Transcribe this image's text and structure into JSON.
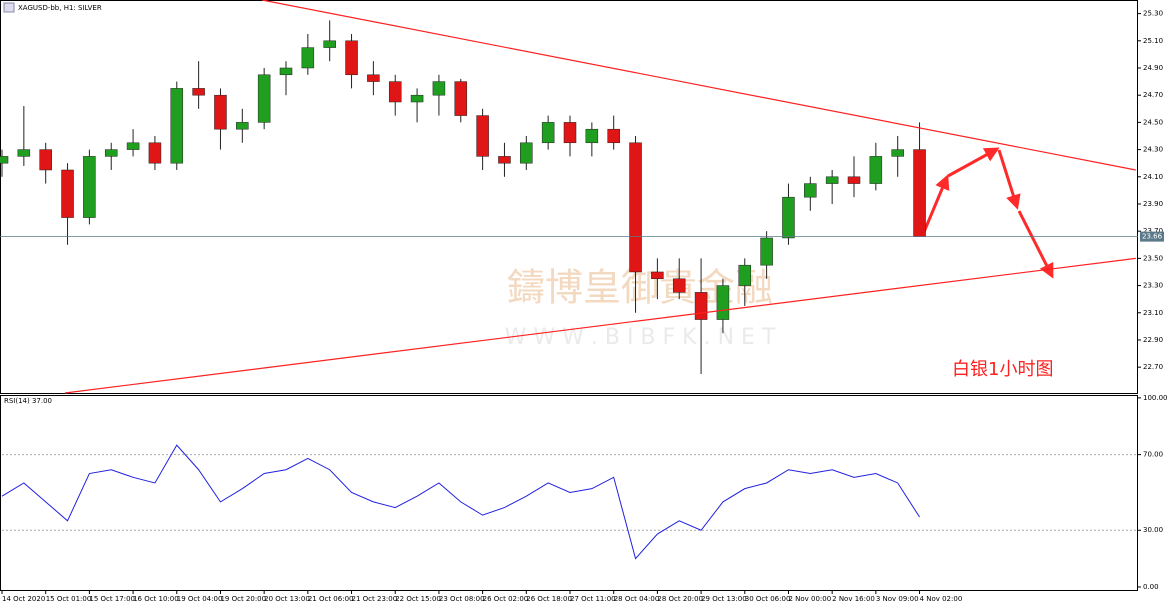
{
  "chart_data": [
    {
      "type": "candlestick",
      "title": "XAGUSD-bb, H1:  SILVER",
      "open": [
        24.2,
        24.25,
        24.3,
        24.15,
        23.8,
        24.25,
        24.3,
        24.35,
        24.2,
        24.75,
        24.7,
        24.45,
        24.5,
        24.85,
        24.9,
        25.05,
        25.1,
        24.85,
        24.8,
        24.65,
        24.7,
        24.8,
        24.55,
        24.25,
        24.2,
        24.35,
        24.5,
        24.35,
        24.45,
        24.35,
        23.4,
        23.35,
        23.25,
        23.05,
        23.3,
        23.45,
        23.65,
        23.95,
        24.05,
        24.1,
        24.05,
        24.25,
        24.3
      ],
      "high": [
        24.3,
        24.62,
        24.35,
        24.2,
        24.3,
        24.35,
        24.45,
        24.4,
        24.8,
        24.95,
        24.75,
        24.6,
        24.9,
        24.95,
        25.15,
        25.25,
        25.15,
        24.95,
        24.85,
        24.75,
        24.85,
        24.82,
        24.6,
        24.35,
        24.4,
        24.55,
        24.55,
        24.5,
        24.55,
        24.4,
        23.5,
        23.5,
        23.5,
        23.35,
        23.5,
        23.7,
        24.05,
        24.1,
        24.15,
        24.25,
        24.35,
        24.4,
        24.5
      ],
      "low": [
        24.1,
        24.18,
        24.05,
        23.6,
        23.75,
        24.15,
        24.25,
        24.15,
        24.15,
        24.6,
        24.3,
        24.35,
        24.45,
        24.7,
        24.85,
        24.95,
        24.75,
        24.7,
        24.55,
        24.5,
        24.55,
        24.5,
        24.15,
        24.1,
        24.15,
        24.3,
        24.25,
        24.25,
        24.3,
        23.1,
        23.2,
        23.2,
        22.65,
        22.95,
        23.15,
        23.35,
        23.6,
        23.85,
        23.9,
        23.95,
        24.0,
        24.1,
        23.66
      ],
      "close": [
        24.25,
        24.3,
        24.15,
        23.8,
        24.25,
        24.3,
        24.35,
        24.2,
        24.75,
        24.7,
        24.45,
        24.5,
        24.85,
        24.9,
        25.05,
        25.1,
        24.85,
        24.8,
        24.65,
        24.7,
        24.8,
        24.55,
        24.25,
        24.2,
        24.35,
        24.5,
        24.35,
        24.45,
        24.35,
        23.4,
        23.35,
        23.25,
        23.05,
        23.3,
        23.45,
        23.65,
        23.95,
        24.05,
        24.1,
        24.05,
        24.25,
        24.3,
        23.66
      ],
      "up_color": "#1f9e1f",
      "down_color": "#e01515",
      "last_price": 23.66,
      "trendlines": [
        {
          "x": [
            11.9,
            51.9
          ],
          "y": [
            25.4,
            24.15
          ],
          "color": "#ff2020"
        },
        {
          "x": [
            2.88,
            51.9
          ],
          "y": [
            22.51,
            23.5
          ],
          "color": "#ff2020"
        }
      ],
      "xlim": [
        0,
        52
      ],
      "ylim": [
        22.51,
        25.4
      ],
      "yticks": [
        {
          "value": 25.3,
          "label": "25.30"
        },
        {
          "value": 25.1,
          "label": "25.10"
        },
        {
          "value": 24.9,
          "label": "24.90"
        },
        {
          "value": 24.7,
          "label": "24.70"
        },
        {
          "value": 24.5,
          "label": "24.50"
        },
        {
          "value": 24.3,
          "label": "24.30"
        },
        {
          "value": 24.1,
          "label": "24.10"
        },
        {
          "value": 23.9,
          "label": "23.90"
        },
        {
          "value": 23.7,
          "label": "23.70"
        },
        {
          "value": 23.5,
          "label": "23.50"
        },
        {
          "value": 23.3,
          "label": "23.30"
        },
        {
          "value": 23.1,
          "label": "23.10"
        },
        {
          "value": 22.9,
          "label": "22.90"
        },
        {
          "value": 22.7,
          "label": "22.70"
        }
      ],
      "annotation": "白银1小时图",
      "watermark": [
        "鑄博皇御貴金融",
        "W W W . B I B F K . N E T"
      ]
    },
    {
      "type": "line",
      "title": "RSI(14) 37.00",
      "series": [
        {
          "name": "RSI(14)",
          "color": "#2020e0",
          "values": [
            48,
            55,
            45,
            35,
            60,
            62,
            58,
            55,
            75,
            62,
            45,
            52,
            60,
            62,
            68,
            62,
            50,
            45,
            42,
            48,
            55,
            45,
            38,
            42,
            48,
            55,
            50,
            52,
            58,
            15,
            28,
            35,
            30,
            45,
            52,
            55,
            62,
            60,
            62,
            58,
            60,
            55,
            37
          ]
        }
      ],
      "xlim": [
        0,
        52
      ],
      "ylim": [
        -1.6,
        101
      ],
      "yticks": [
        {
          "value": 100,
          "label": "100.00"
        },
        {
          "value": 70,
          "label": "70.00"
        },
        {
          "value": 30,
          "label": "30.00"
        },
        {
          "value": 0,
          "label": "0.00"
        }
      ],
      "xticks": [
        {
          "value": 0,
          "label": "14 Oct 2020"
        },
        {
          "value": 2,
          "label": "15 Oct 01:00"
        },
        {
          "value": 4,
          "label": "15 Oct 17:00"
        },
        {
          "value": 6,
          "label": "16 Oct 10:00"
        },
        {
          "value": 8,
          "label": "19 Oct 04:00"
        },
        {
          "value": 10,
          "label": "19 Oct 20:00"
        },
        {
          "value": 12,
          "label": "20 Oct 13:00"
        },
        {
          "value": 14,
          "label": "21 Oct 06:00"
        },
        {
          "value": 16,
          "label": "21 Oct 23:00"
        },
        {
          "value": 18,
          "label": "22 Oct 15:00"
        },
        {
          "value": 20,
          "label": "23 Oct 08:00"
        },
        {
          "value": 22,
          "label": "26 Oct 02:00"
        },
        {
          "value": 24,
          "label": "26 Oct 18:00"
        },
        {
          "value": 26,
          "label": "27 Oct 11:00"
        },
        {
          "value": 28,
          "label": "28 Oct 04:00"
        },
        {
          "value": 30,
          "label": "28 Oct 20:00"
        },
        {
          "value": 32,
          "label": "29 Oct 13:00"
        },
        {
          "value": 34,
          "label": "30 Oct 06:00"
        },
        {
          "value": 36,
          "label": "2 Nov 00:00"
        },
        {
          "value": 38,
          "label": "2 Nov 16:00"
        },
        {
          "value": 40,
          "label": "3 Nov 09:00"
        },
        {
          "value": 42,
          "label": "4 Nov 02:00"
        }
      ]
    }
  ]
}
